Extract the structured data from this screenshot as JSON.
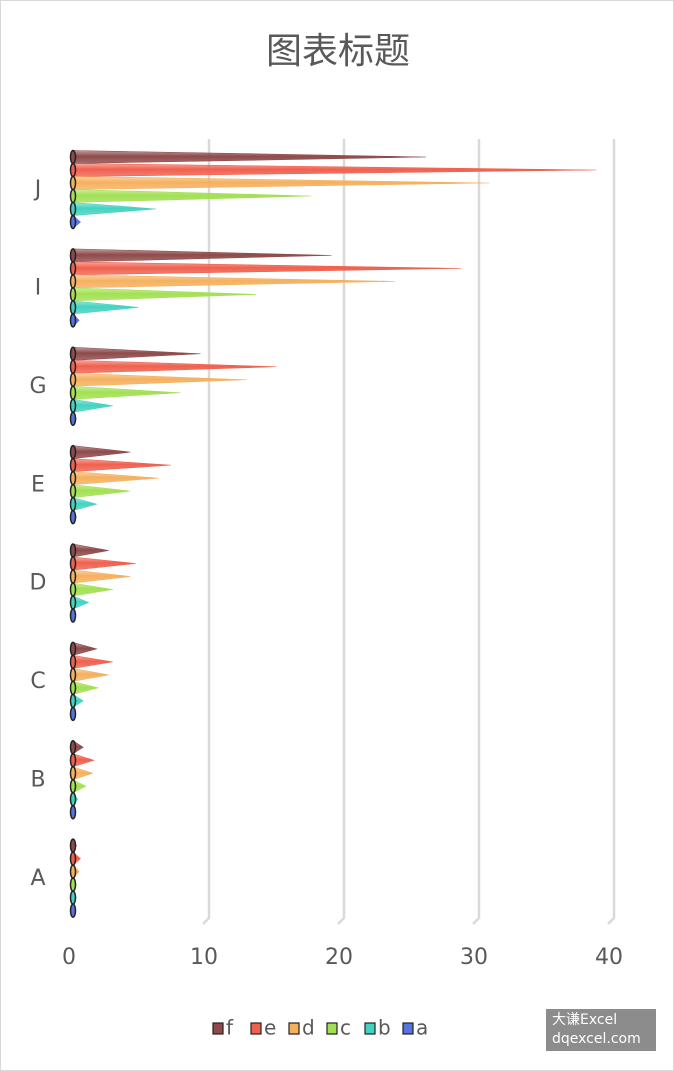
{
  "chart_data": {
    "type": "bar",
    "orientation": "horizontal",
    "title": "图表标题",
    "categories": [
      "A",
      "B",
      "C",
      "D",
      "E",
      "G",
      "I",
      "J"
    ],
    "series": [
      {
        "name": "f",
        "color": "#8e4a4a",
        "values": [
          0.4,
          0.9,
          1.9,
          2.8,
          4.4,
          9.6,
          19.3,
          26.3
        ]
      },
      {
        "name": "e",
        "color": "#f0604e",
        "values": [
          0.7,
          1.7,
          3.1,
          4.8,
          7.4,
          15.2,
          28.9,
          38.9
        ]
      },
      {
        "name": "d",
        "color": "#f5b05e",
        "values": [
          0.6,
          1.6,
          2.8,
          4.4,
          6.5,
          13,
          24,
          31
        ]
      },
      {
        "name": "c",
        "color": "#a2e052",
        "values": [
          0.4,
          1.1,
          2,
          3.1,
          4.4,
          8.1,
          13.7,
          17.8
        ]
      },
      {
        "name": "b",
        "color": "#44d2c0",
        "values": [
          0.4,
          0.5,
          0.9,
          1.3,
          1.9,
          3.1,
          5,
          6.3
        ]
      },
      {
        "name": "a",
        "color": "#5673e0",
        "values": [
          0.2,
          0.2,
          0.2,
          0.3,
          0.4,
          0.4,
          0.6,
          0.7
        ]
      }
    ],
    "xlim": [
      0,
      40
    ],
    "xticks": [
      0,
      10,
      20,
      30,
      40
    ],
    "grid": true,
    "legend": "bottom"
  },
  "watermark": {
    "line1": "大谦Excel",
    "line2": "dqexcel.com"
  }
}
